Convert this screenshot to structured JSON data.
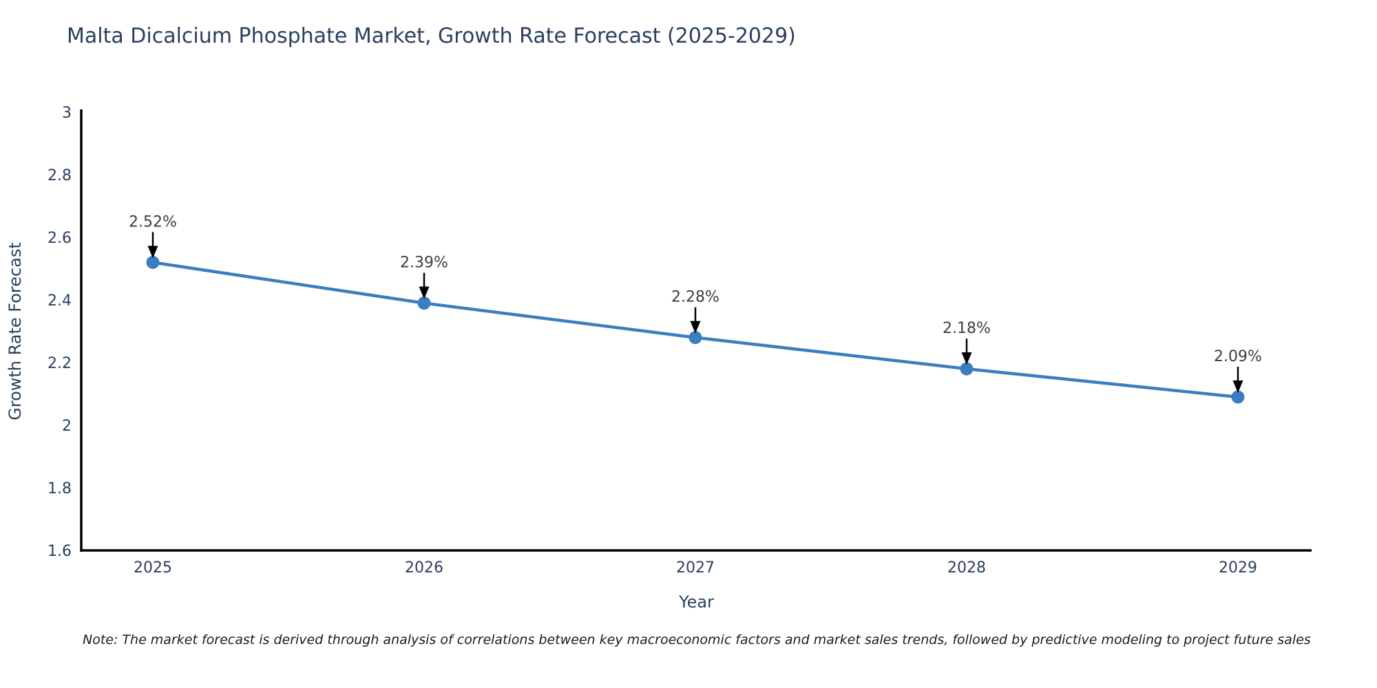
{
  "note": "Note: The market forecast is derived through analysis of correlations between key macroeconomic factors and market sales trends, followed by predictive modeling to project future sales",
  "chart_data": {
    "type": "line",
    "title": "Malta Dicalcium Phosphate Market, Growth Rate Forecast (2025-2029)",
    "xlabel": "Year",
    "ylabel": "Growth Rate Forecast",
    "categories": [
      "2025",
      "2026",
      "2027",
      "2028",
      "2029"
    ],
    "values": [
      2.52,
      2.39,
      2.28,
      2.18,
      2.09
    ],
    "point_labels": [
      "2.52%",
      "2.39%",
      "2.28%",
      "2.18%",
      "2.09%"
    ],
    "ylim": [
      1.6,
      3
    ],
    "yticks": [
      1.6,
      1.8,
      2,
      2.2,
      2.4,
      2.6,
      2.8,
      3
    ],
    "grid": false,
    "legend": "none",
    "colors": {
      "line": "#3a7ebf",
      "marker": "#3a7ebf",
      "axis": "#000000",
      "tick_label": "#2a3f5f",
      "axis_title": "#2a3f5f",
      "title": "#2a3f5f",
      "annotation_text": "#3d3d3d",
      "annotation_arrow": "#000000",
      "background": "#ffffff"
    }
  }
}
